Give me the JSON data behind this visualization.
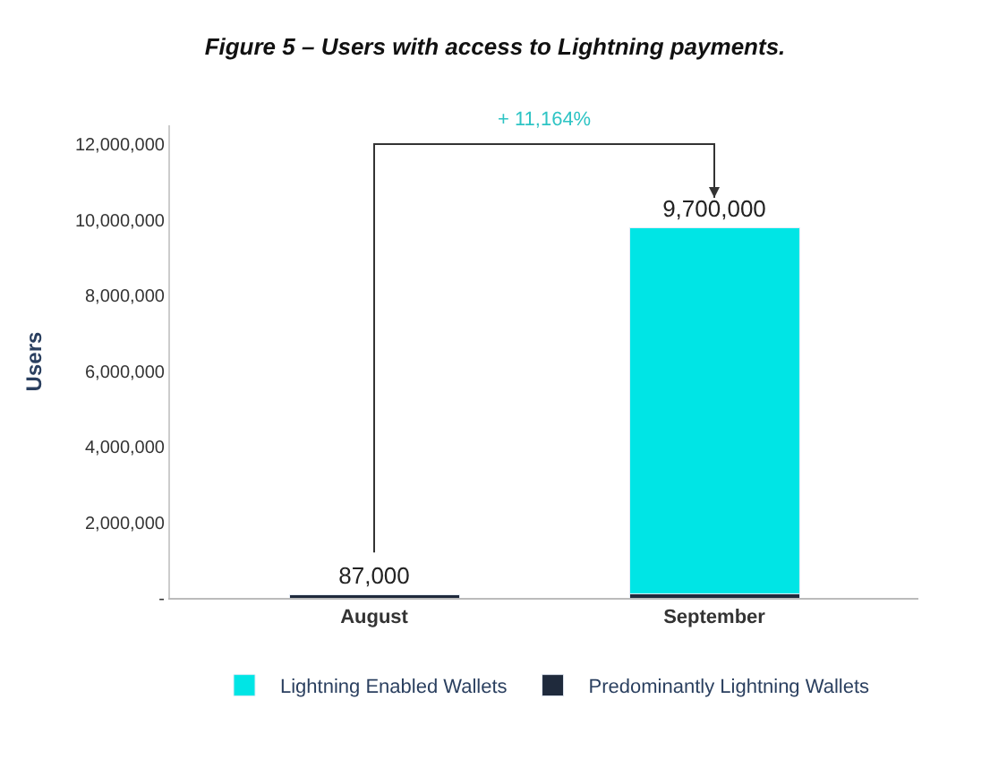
{
  "chart_data": {
    "type": "bar",
    "title": "Figure 5 – Users with access to Lightning payments.",
    "ylabel": "Users",
    "categories": [
      "August",
      "September"
    ],
    "stacked": true,
    "series": [
      {
        "name": "Predominantly Lightning Wallets",
        "color": "#1f2a3c",
        "values": [
          87000,
          100000
        ],
        "value_labels": [
          "87,000",
          null
        ]
      },
      {
        "name": "Lightning Enabled Wallets",
        "color": "#00e5e5",
        "values": [
          null,
          9700000
        ],
        "value_labels": [
          null,
          "9,700,000"
        ]
      }
    ],
    "ylim": [
      0,
      12500000
    ],
    "yticks": [
      {
        "value": 0,
        "label": "-"
      },
      {
        "value": 2000000,
        "label": "2,000,000"
      },
      {
        "value": 4000000,
        "label": "4,000,000"
      },
      {
        "value": 6000000,
        "label": "6,000,000"
      },
      {
        "value": 8000000,
        "label": "8,000,000"
      },
      {
        "value": 10000000,
        "label": "10,000,000"
      },
      {
        "value": 12000000,
        "label": "12,000,000"
      }
    ],
    "annotations": [
      "+ 11,164%"
    ],
    "legend": "bottom"
  }
}
